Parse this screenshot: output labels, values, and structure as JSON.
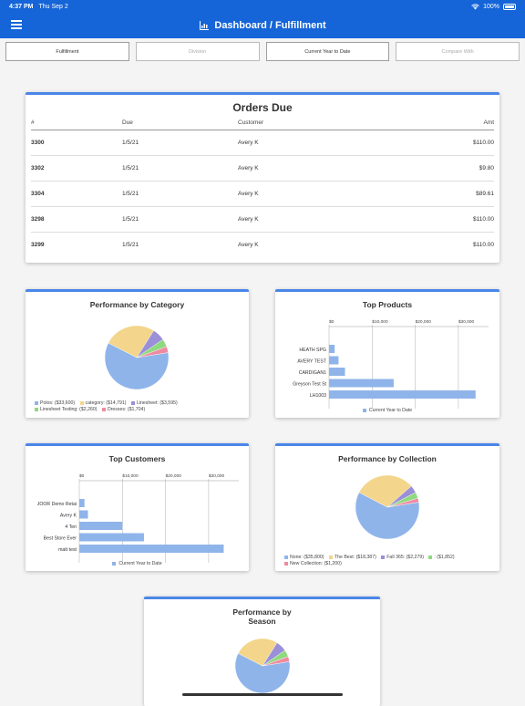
{
  "status": {
    "time": "4:37 PM",
    "date": "Thu Sep 2",
    "battery": "100%"
  },
  "header": {
    "title": "Dashboard / Fulfillment"
  },
  "filters": [
    "Fulfillment",
    "Division",
    "Current Year to Date",
    "Compare With"
  ],
  "orders": {
    "title": "Orders Due",
    "columns": [
      "#",
      "Due",
      "Customer",
      "Amt"
    ],
    "rows": [
      [
        "3300",
        "1/5/21",
        "Avery K",
        "$110.00"
      ],
      [
        "3302",
        "1/5/21",
        "Avery K",
        "$9.80"
      ],
      [
        "3304",
        "1/5/21",
        "Avery K",
        "$89.61"
      ],
      [
        "3298",
        "1/5/21",
        "Avery K",
        "$110.00"
      ],
      [
        "3299",
        "1/5/21",
        "Avery K",
        "$110.00"
      ]
    ]
  },
  "chart_data": [
    {
      "type": "pie",
      "title": "Performance by Category",
      "slices": [
        {
          "label": "Polos: ($33,600)",
          "value": 33600,
          "color": "#8fb4ea"
        },
        {
          "label": "category: ($14,791)",
          "value": 14791,
          "color": "#f3d58b"
        },
        {
          "label": "Linesheet: ($3,595)",
          "value": 3595,
          "color": "#9b8fd8"
        },
        {
          "label": "Linesheet Testing: ($2,260)",
          "value": 2260,
          "color": "#8fd97e"
        },
        {
          "label": "Dresses: ($1,704)",
          "value": 1704,
          "color": "#f08aa0"
        }
      ]
    },
    {
      "type": "bar",
      "title": "Top Products",
      "orientation": "horizontal",
      "categories": [
        "HEATH SPG",
        "AVERY TEST",
        "CARDIGAN1",
        "Greyson Test St",
        "LH1003"
      ],
      "series": [
        {
          "name": "Current Year to Date",
          "values": [
            1300,
            2200,
            3700,
            15000,
            34000
          ]
        }
      ],
      "xticks": [
        "$0",
        "$10,000",
        "$20,000",
        "$30,000"
      ],
      "xlim": [
        0,
        37000
      ]
    },
    {
      "type": "bar",
      "title": "Top Customers",
      "orientation": "horizontal",
      "categories": [
        "JOOR Demo Retai",
        "Avery K",
        "4 Ten",
        "Best Store Ever",
        "matt test"
      ],
      "series": [
        {
          "name": "Current Year to Date",
          "values": [
            1200,
            2000,
            10000,
            15000,
            33500
          ]
        }
      ],
      "xticks": [
        "$0",
        "$10,000",
        "$20,000",
        "$30,000"
      ],
      "xlim": [
        0,
        37000
      ]
    },
    {
      "type": "pie",
      "title": "Performance by Collection",
      "slices": [
        {
          "label": "None: ($35,800)",
          "value": 35800,
          "color": "#8fb4ea"
        },
        {
          "label": "The Best: ($18,387)",
          "value": 18387,
          "color": "#f3d58b"
        },
        {
          "label": "Fall 365: ($2,279)",
          "value": 2279,
          "color": "#9b8fd8"
        },
        {
          "label": ": ($1,852)",
          "value": 1852,
          "color": "#8fd97e"
        },
        {
          "label": "New Collection: ($1,200)",
          "value": 1200,
          "color": "#f08aa0"
        }
      ]
    },
    {
      "type": "pie",
      "title": "Performance by Season",
      "slices": [
        {
          "value": 33600,
          "color": "#8fb4ea"
        },
        {
          "value": 14791,
          "color": "#f3d58b"
        },
        {
          "value": 3595,
          "color": "#9b8fd8"
        },
        {
          "value": 2260,
          "color": "#8fd97e"
        },
        {
          "value": 1704,
          "color": "#f08aa0"
        }
      ]
    }
  ]
}
